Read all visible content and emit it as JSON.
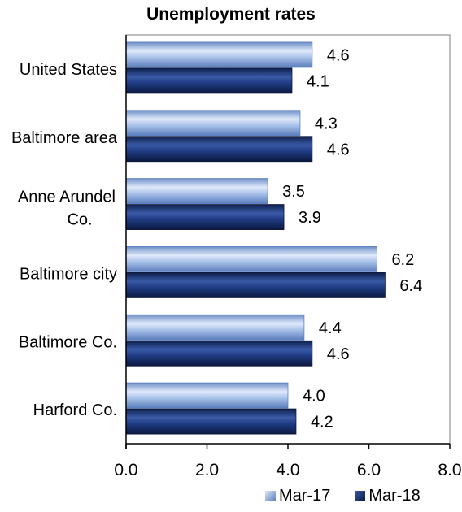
{
  "chart_data": {
    "type": "bar",
    "orientation": "horizontal",
    "title": "Unemployment rates",
    "categories": [
      "United States",
      "Baltimore area",
      "Anne Arundel Co.",
      "Baltimore city",
      "Baltimore Co.",
      "Harford Co."
    ],
    "series": [
      {
        "name": "Mar-17",
        "values": [
          4.6,
          4.3,
          3.5,
          6.2,
          4.4,
          4.0
        ],
        "labels": [
          "4.6",
          "4.3",
          "3.5",
          "6.2",
          "4.4",
          "4.0"
        ],
        "color": "#8fb1e3"
      },
      {
        "name": "Mar-18",
        "values": [
          4.1,
          4.6,
          3.9,
          6.4,
          4.6,
          4.2
        ],
        "labels": [
          "4.1",
          "4.6",
          "3.9",
          "6.4",
          "4.6",
          "4.2"
        ],
        "color": "#1f3a7a"
      }
    ],
    "xlim": [
      0,
      8
    ],
    "xticks": [
      "0.0",
      "2.0",
      "4.0",
      "6.0",
      "8.0"
    ],
    "grid": false,
    "legend": "bottom-right"
  }
}
